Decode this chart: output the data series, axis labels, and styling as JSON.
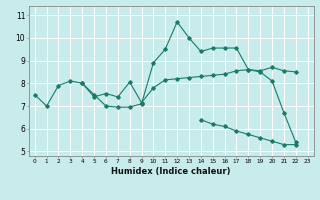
{
  "xlabel": "Humidex (Indice chaleur)",
  "bg_color": "#c8ecec",
  "line_color": "#1a7a6a",
  "grid_color": "#ffffff",
  "xlim": [
    -0.5,
    23.5
  ],
  "ylim": [
    4.8,
    11.4
  ],
  "xticks": [
    0,
    1,
    2,
    3,
    4,
    5,
    6,
    7,
    8,
    9,
    10,
    11,
    12,
    13,
    14,
    15,
    16,
    17,
    18,
    19,
    20,
    21,
    22,
    23
  ],
  "yticks": [
    5,
    6,
    7,
    8,
    9,
    10,
    11
  ],
  "series1": {
    "x": [
      0,
      1,
      2,
      3,
      4,
      5,
      6,
      7,
      8,
      9,
      10,
      11,
      12,
      13,
      14,
      15,
      16,
      17,
      18,
      19,
      20,
      21,
      22
    ],
    "y": [
      7.5,
      7.0,
      7.9,
      8.1,
      8.0,
      7.5,
      7.0,
      6.95,
      6.95,
      7.1,
      8.9,
      9.5,
      10.7,
      10.0,
      9.4,
      9.55,
      9.55,
      9.55,
      8.6,
      8.5,
      8.1,
      6.7,
      5.4
    ]
  },
  "series2": {
    "x": [
      4,
      5,
      6,
      7,
      8,
      9,
      10,
      11,
      12,
      13,
      14,
      15,
      16,
      17,
      18,
      19,
      20,
      21,
      22
    ],
    "y": [
      8.0,
      7.4,
      7.55,
      7.4,
      8.05,
      7.15,
      7.8,
      8.15,
      8.2,
      8.25,
      8.3,
      8.35,
      8.4,
      8.55,
      8.6,
      8.55,
      8.7,
      8.55,
      8.5
    ]
  },
  "series3": {
    "x": [
      14,
      15,
      16,
      17,
      18,
      19,
      20,
      21,
      22
    ],
    "y": [
      6.4,
      6.2,
      6.1,
      5.9,
      5.75,
      5.6,
      5.45,
      5.3,
      5.3
    ]
  }
}
